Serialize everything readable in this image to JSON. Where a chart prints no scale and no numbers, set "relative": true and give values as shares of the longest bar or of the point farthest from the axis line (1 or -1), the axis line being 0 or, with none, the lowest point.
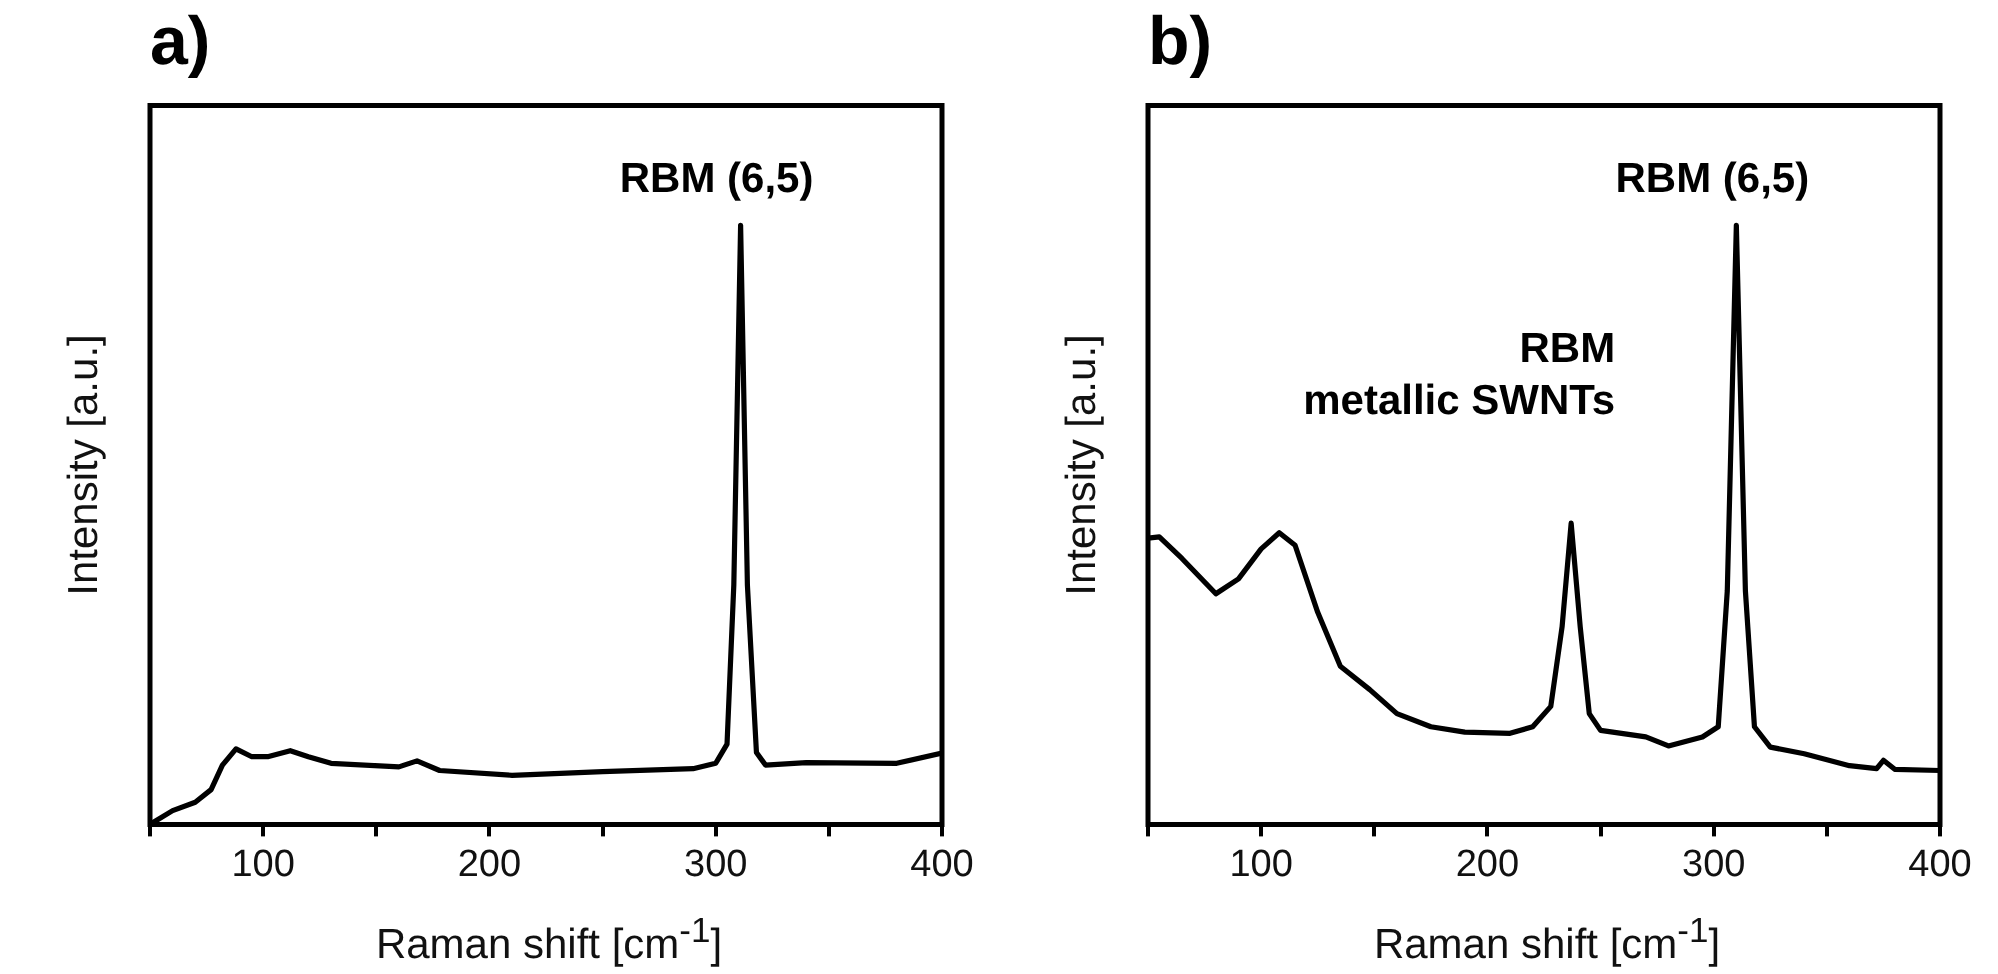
{
  "chart_data": [
    {
      "type": "line",
      "title": "a)",
      "xlabel": "Raman shift [cm$^{-1}$]",
      "ylabel": "Intensity [a.u.]",
      "relative": true,
      "xlim": [
        50,
        400
      ],
      "xticks": [
        {
          "value": 50,
          "label": null
        },
        100,
        {
          "value": 150,
          "label": null
        },
        200,
        {
          "value": 250,
          "label": null
        },
        300,
        {
          "value": 350,
          "label": null
        },
        400
      ],
      "marker": "none",
      "legend": false,
      "annotations": [
        {
          "text": "RBM (6,5)",
          "x": 311,
          "y": 1
        }
      ],
      "x": [
        50,
        60,
        70,
        77,
        82,
        88,
        95,
        102,
        112,
        120,
        130,
        160,
        168,
        178,
        210,
        250,
        290,
        300,
        305,
        308,
        311,
        314,
        318,
        322,
        340,
        380,
        400
      ],
      "series": [
        {
          "color": "#000000",
          "values": [
            0,
            0.023,
            0.037,
            0.058,
            0.099,
            0.126,
            0.113,
            0.113,
            0.123,
            0.113,
            0.102,
            0.096,
            0.106,
            0.09,
            0.082,
            0.088,
            0.093,
            0.102,
            0.134,
            0.4,
            1,
            0.4,
            0.12,
            0.099,
            0.103,
            0.102,
            0.119
          ]
        }
      ]
    },
    {
      "type": "line",
      "title": "b)",
      "xlabel": "Raman shift [cm$^{-1}$]",
      "ylabel": "Intensity [a.u.]",
      "relative": true,
      "xlim": [
        50,
        400
      ],
      "xticks": [
        {
          "value": 50,
          "label": null
        },
        100,
        {
          "value": 150,
          "label": null
        },
        200,
        {
          "value": 250,
          "label": null
        },
        300,
        {
          "value": 350,
          "label": null
        },
        400
      ],
      "marker": "none",
      "legend": false,
      "annotations": [
        {
          "text": "RBM (6,5)",
          "x": 310,
          "y": 1
        },
        {
          "text": "RBM\nmetallic SWNTs",
          "x": 237,
          "y": 0.503
        }
      ],
      "x": [
        50,
        55,
        65,
        80,
        90,
        100,
        108,
        115,
        125,
        135,
        148,
        160,
        175,
        190,
        210,
        220,
        228,
        233,
        237,
        241,
        245,
        250,
        270,
        280,
        295,
        302,
        306,
        310,
        314,
        318,
        325,
        340,
        360,
        372,
        375,
        380,
        400
      ],
      "series": [
        {
          "color": "#000000",
          "values": [
            0.478,
            0.48,
            0.444,
            0.385,
            0.41,
            0.46,
            0.487,
            0.466,
            0.354,
            0.264,
            0.225,
            0.185,
            0.163,
            0.154,
            0.152,
            0.163,
            0.197,
            0.33,
            0.503,
            0.33,
            0.185,
            0.157,
            0.146,
            0.131,
            0.146,
            0.163,
            0.39,
            1,
            0.39,
            0.163,
            0.129,
            0.118,
            0.098,
            0.093,
            0.107,
            0.092,
            0.09
          ]
        }
      ]
    }
  ]
}
